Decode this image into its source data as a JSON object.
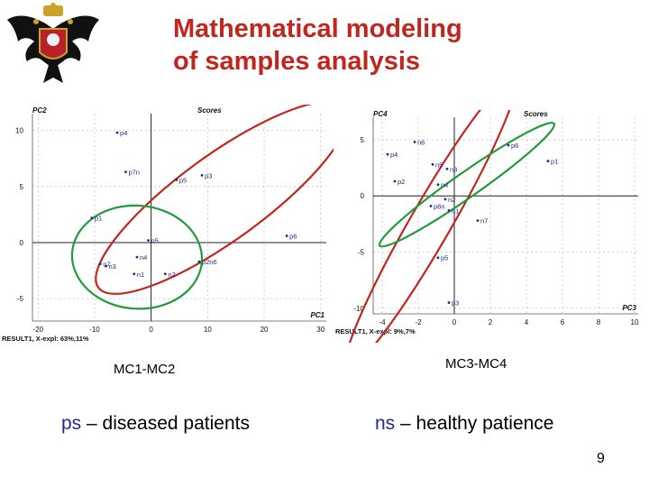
{
  "slide": {
    "title_line1": "Mathematical modeling",
    "title_line2": "of samples analysis",
    "caption_left": "MC1-MC2",
    "caption_right": "MC3-MC4",
    "legend_left_key": "ps",
    "legend_left_text": " – diseased patients",
    "legend_right_key": "ns",
    "legend_right_text": " – healthy patience",
    "page_number": "9",
    "logo": "university-crest-double-headed-eagle"
  },
  "chart_data": [
    {
      "type": "scatter",
      "title": "Scores",
      "xlabel": "PC1",
      "ylabel": "PC2",
      "footer": "RESULT1, X-expl: 63%,11%",
      "xlim": [
        -21,
        31
      ],
      "ylim": [
        -7,
        11.5
      ],
      "xticks": [
        -20,
        -10,
        0,
        10,
        20,
        30
      ],
      "yticks": [
        -5,
        0,
        5,
        10
      ],
      "grid": true,
      "colors": {
        "point": "#1f2a8c",
        "ellipse_diseased": "#c0261f",
        "ellipse_healthy": "#1e9c3c"
      },
      "points": [
        {
          "label": "p4",
          "x": -6,
          "y": 9.8
        },
        {
          "label": "p7n",
          "x": -4.5,
          "y": 6.3
        },
        {
          "label": "p3",
          "x": 9,
          "y": 6
        },
        {
          "label": "p5",
          "x": 4.5,
          "y": 5.6
        },
        {
          "label": "p1",
          "x": -10.5,
          "y": 2.2
        },
        {
          "label": "p6",
          "x": 24,
          "y": 0.6
        },
        {
          "label": "n5",
          "x": -0.5,
          "y": 0.2
        },
        {
          "label": "n4",
          "x": -2.5,
          "y": -1.3
        },
        {
          "label": "n7",
          "x": -9,
          "y": -1.9
        },
        {
          "label": "n3",
          "x": -8,
          "y": -2.1
        },
        {
          "label": "p2n6",
          "x": 8.5,
          "y": -1.7
        },
        {
          "label": "n1",
          "x": -3,
          "y": -2.8
        },
        {
          "label": "n2",
          "x": 2.5,
          "y": -2.8
        }
      ],
      "ellipses": [
        {
          "group": "ps",
          "color": "#c0261f",
          "cx": 12.5,
          "cy": 4,
          "rx": 27,
          "ry": 3.8,
          "angle": -36
        },
        {
          "group": "ns",
          "color": "#1e9c3c",
          "cx": -2.5,
          "cy": -1.3,
          "rx": 11.5,
          "ry": 4.6,
          "angle": 4
        }
      ]
    },
    {
      "type": "scatter",
      "title": "Scores",
      "xlabel": "PC3",
      "ylabel": "PC4",
      "footer": "RESULT1, X-expl: 9%,7%",
      "xlim": [
        -4.5,
        10.2
      ],
      "ylim": [
        -10.5,
        7
      ],
      "xticks": [
        -4,
        -2,
        0,
        2,
        4,
        6,
        8,
        10
      ],
      "yticks": [
        -10,
        -5,
        0,
        5
      ],
      "grid": true,
      "colors": {
        "point": "#1f2a8c",
        "ellipse_diseased": "#c0261f",
        "ellipse_healthy": "#1e9c3c"
      },
      "points": [
        {
          "label": "n6",
          "x": -2.2,
          "y": 4.8
        },
        {
          "label": "p6",
          "x": 3,
          "y": 4.5
        },
        {
          "label": "p4",
          "x": -3.7,
          "y": 3.7
        },
        {
          "label": "p1",
          "x": 5.2,
          "y": 3.1
        },
        {
          "label": "n5",
          "x": -1.2,
          "y": 2.8
        },
        {
          "label": "n3",
          "x": -0.4,
          "y": 2.4
        },
        {
          "label": "p2",
          "x": -3.3,
          "y": 1.3
        },
        {
          "label": "n4",
          "x": -0.9,
          "y": 1
        },
        {
          "label": "n2",
          "x": -0.5,
          "y": -0.3
        },
        {
          "label": "p8n",
          "x": -1.3,
          "y": -0.9
        },
        {
          "label": "n1",
          "x": -0.3,
          "y": -1.3
        },
        {
          "label": "n7",
          "x": 1.3,
          "y": -2.2
        },
        {
          "label": "p5",
          "x": -0.9,
          "y": -5.5
        },
        {
          "label": "p3",
          "x": -0.3,
          "y": -9.5
        }
      ],
      "ellipses": [
        {
          "group": "ps",
          "color": "#c0261f",
          "cx": -1.3,
          "cy": -2.4,
          "rx": 9.3,
          "ry": 1.8,
          "angle": -60
        },
        {
          "group": "ns",
          "color": "#1e9c3c",
          "cx": 0.7,
          "cy": 1,
          "rx": 5.9,
          "ry": 1.1,
          "angle": -35
        }
      ]
    }
  ]
}
